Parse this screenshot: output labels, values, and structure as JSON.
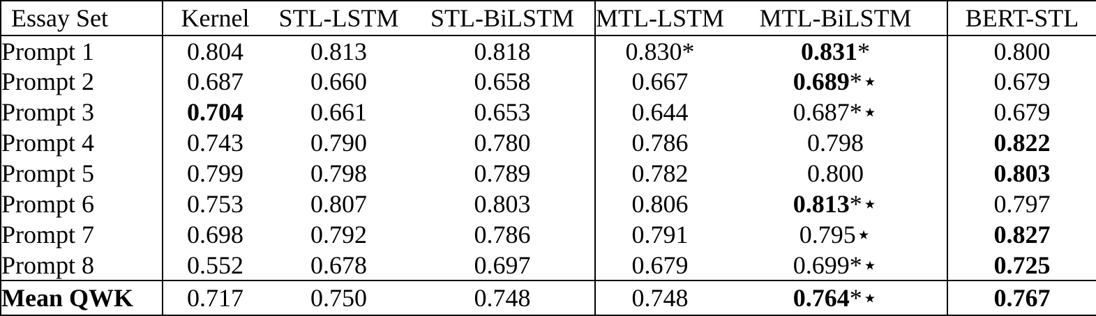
{
  "colors": {
    "ink": "#000000",
    "paper": "#ffffff",
    "rule": "#000000"
  },
  "table": {
    "columns": [
      {
        "id": "essay-set",
        "label": "Essay Set"
      },
      {
        "id": "kernel",
        "label": "Kernel"
      },
      {
        "id": "stl-lstm",
        "label": "STL-LSTM"
      },
      {
        "id": "stl-bilstm",
        "label": "STL-BiLSTM"
      },
      {
        "id": "mtl-lstm",
        "label": "MTL-LSTM"
      },
      {
        "id": "mtl-bilstm",
        "label": "MTL-BiLSTM"
      },
      {
        "id": "bert-stl",
        "label": "BERT-STL"
      }
    ],
    "rows": [
      {
        "label": "Prompt 1",
        "cells": [
          {
            "v": "0.804"
          },
          {
            "v": "0.813"
          },
          {
            "v": "0.818"
          },
          {
            "v": "0.830",
            "m": "*"
          },
          {
            "v": "0.831",
            "m": "*",
            "b": true
          },
          {
            "v": "0.800"
          }
        ]
      },
      {
        "label": "Prompt 2",
        "cells": [
          {
            "v": "0.687"
          },
          {
            "v": "0.660"
          },
          {
            "v": "0.658"
          },
          {
            "v": "0.667"
          },
          {
            "v": "0.689",
            "m": "*⋆",
            "b": true
          },
          {
            "v": "0.679"
          }
        ]
      },
      {
        "label": "Prompt 3",
        "cells": [
          {
            "v": "0.704",
            "b": true
          },
          {
            "v": "0.661"
          },
          {
            "v": "0.653"
          },
          {
            "v": "0.644"
          },
          {
            "v": "0.687",
            "m": "*⋆"
          },
          {
            "v": "0.679"
          }
        ]
      },
      {
        "label": "Prompt 4",
        "cells": [
          {
            "v": "0.743"
          },
          {
            "v": "0.790"
          },
          {
            "v": "0.780"
          },
          {
            "v": "0.786"
          },
          {
            "v": "0.798"
          },
          {
            "v": "0.822",
            "b": true
          }
        ]
      },
      {
        "label": "Prompt 5",
        "cells": [
          {
            "v": "0.799"
          },
          {
            "v": "0.798"
          },
          {
            "v": "0.789"
          },
          {
            "v": "0.782"
          },
          {
            "v": "0.800"
          },
          {
            "v": "0.803",
            "b": true
          }
        ]
      },
      {
        "label": "Prompt 6",
        "cells": [
          {
            "v": "0.753"
          },
          {
            "v": "0.807"
          },
          {
            "v": "0.803"
          },
          {
            "v": "0.806"
          },
          {
            "v": "0.813",
            "m": "*⋆",
            "b": true
          },
          {
            "v": "0.797"
          }
        ]
      },
      {
        "label": "Prompt 7",
        "cells": [
          {
            "v": "0.698"
          },
          {
            "v": "0.792"
          },
          {
            "v": "0.786"
          },
          {
            "v": "0.791"
          },
          {
            "v": "0.795",
            "m": "⋆"
          },
          {
            "v": "0.827",
            "b": true
          }
        ]
      },
      {
        "label": "Prompt 8",
        "cells": [
          {
            "v": "0.552"
          },
          {
            "v": "0.678"
          },
          {
            "v": "0.697"
          },
          {
            "v": "0.679"
          },
          {
            "v": "0.699",
            "m": "*⋆"
          },
          {
            "v": "0.725",
            "b": true
          }
        ]
      }
    ],
    "footer": {
      "label": "Mean QWK",
      "cells": [
        {
          "v": "0.717"
        },
        {
          "v": "0.750"
        },
        {
          "v": "0.748"
        },
        {
          "v": "0.748"
        },
        {
          "v": "0.764",
          "m": "*⋆",
          "b": true
        },
        {
          "v": "0.767",
          "b": true
        }
      ]
    }
  }
}
